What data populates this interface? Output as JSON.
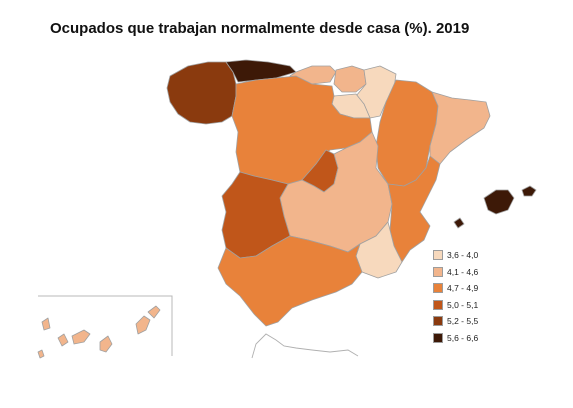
{
  "title": "Ocupados que trabajan normalmente desde casa (%). 2019",
  "legend": [
    {
      "label": "3,6 - 4,0",
      "color": "#f7d9bd"
    },
    {
      "label": "4,1 - 4,6",
      "color": "#f2b58c"
    },
    {
      "label": "4,7 - 4,9",
      "color": "#e8823a"
    },
    {
      "label": "5,0 - 5,1",
      "color": "#c0561a"
    },
    {
      "label": "5,2 - 5,5",
      "color": "#8a3a0e"
    },
    {
      "label": "5,6 - 6,6",
      "color": "#3d1907"
    }
  ],
  "regions": [
    {
      "name": "Galicia",
      "class": 4
    },
    {
      "name": "Asturias",
      "class": 5
    },
    {
      "name": "Cantabria",
      "class": 1
    },
    {
      "name": "País Vasco",
      "class": 1
    },
    {
      "name": "Navarra",
      "class": 0
    },
    {
      "name": "La Rioja",
      "class": 0
    },
    {
      "name": "Aragón",
      "class": 2
    },
    {
      "name": "Cataluña",
      "class": 1
    },
    {
      "name": "Castilla y León",
      "class": 2
    },
    {
      "name": "Madrid",
      "class": 3
    },
    {
      "name": "Castilla-La Mancha",
      "class": 1
    },
    {
      "name": "Comunitat Valenciana",
      "class": 2
    },
    {
      "name": "Extremadura",
      "class": 3
    },
    {
      "name": "Andalucía",
      "class": 2
    },
    {
      "name": "Murcia",
      "class": 0
    },
    {
      "name": "Illes Balears",
      "class": 5
    },
    {
      "name": "Canarias",
      "class": 1
    }
  ]
}
